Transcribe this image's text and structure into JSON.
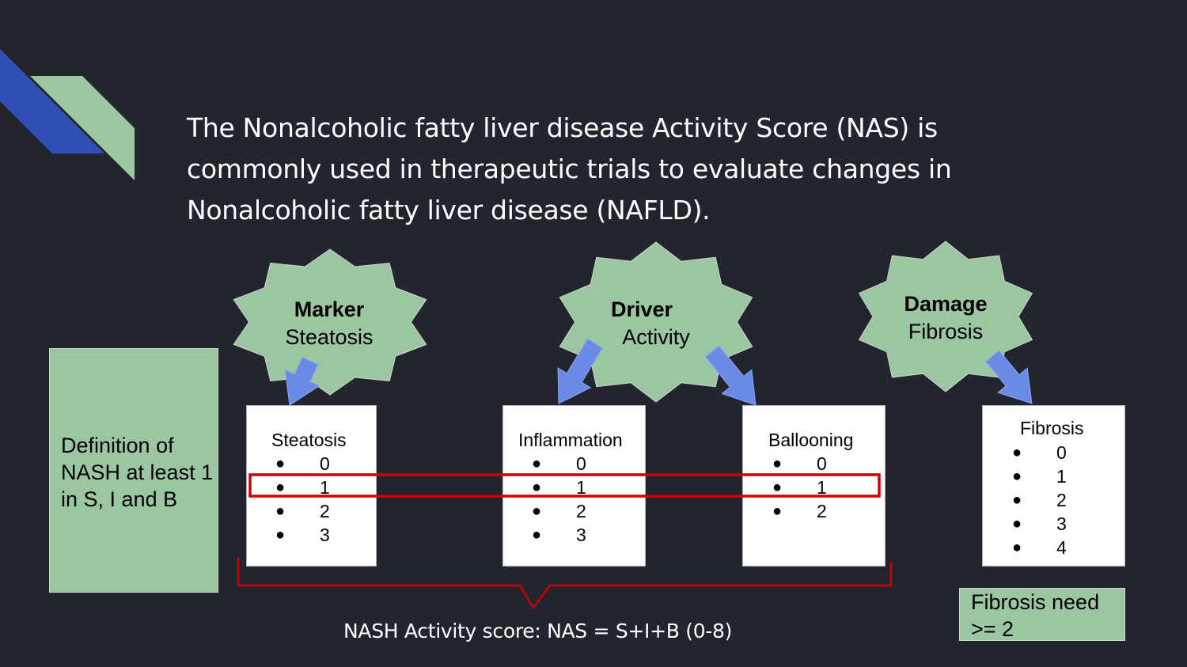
{
  "title": "The Nonalcoholic fatty liver disease Activity Score (NAS) is commonly used in therapeutic trials to evaluate changes in Nonalcoholic fatty liver disease (NAFLD).",
  "definition": "Definition of NASH at least 1 in S, I and B",
  "bursts": [
    {
      "heading": "Marker",
      "sub": "Steatosis"
    },
    {
      "heading": "Driver",
      "sub": "Activity"
    },
    {
      "heading": "Damage",
      "sub": "Fibrosis"
    }
  ],
  "boxes": [
    {
      "title": "Steatosis",
      "items": [
        "0",
        "1",
        "2",
        "3"
      ]
    },
    {
      "title": "Inflammation",
      "items": [
        "0",
        "1",
        "2",
        "3"
      ]
    },
    {
      "title": "Ballooning",
      "items": [
        "0",
        "1",
        "2"
      ]
    },
    {
      "title": "Fibrosis",
      "items": [
        "0",
        "1",
        "2",
        "3",
        "4"
      ]
    }
  ],
  "bullet_symbol": "●",
  "nas_formula": "NASH Activity score: NAS = S+I+B (0-8)",
  "fibrosis_note": "Fibrosis need >= 2",
  "colors": {
    "background": "#23252e",
    "burst_green": "#9cc5a1",
    "arrow_blue": "#6a8ae6",
    "deco_blue": "#2f4fb4",
    "highlight_red": "#cc0000"
  }
}
